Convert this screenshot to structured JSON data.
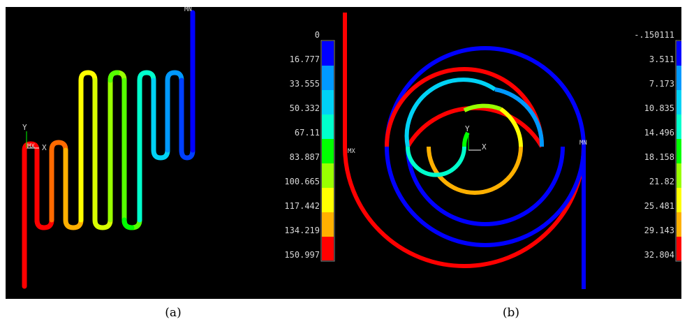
{
  "figure": {
    "caption_a": "(a)",
    "caption_b": "(b)"
  },
  "panel_a": {
    "marker_max": "MX",
    "marker_min": "MN",
    "axis_x": "X",
    "axis_y": "Y",
    "legend": [
      "0",
      "16.777",
      "33.555",
      "50.332",
      "67.11",
      "83.887",
      "100.665",
      "117.442",
      "134.219",
      "150.997"
    ]
  },
  "panel_b": {
    "marker_max": "MX",
    "marker_min": "MN",
    "axis_x": "X",
    "axis_y": "Y",
    "legend": [
      "-.150111",
      "3.511",
      "7.173",
      "10.835",
      "14.496",
      "18.158",
      "21.82",
      "25.481",
      "29.143",
      "32.804"
    ]
  },
  "colors": {
    "band_1": "#0000ff",
    "band_2": "#0099ff",
    "band_3": "#00d2f5",
    "band_4": "#00ffcc",
    "band_5": "#00ff00",
    "band_6": "#99ff00",
    "band_7": "#ffff00",
    "band_8": "#ffb000",
    "band_9": "#ff0000",
    "background": "#000000"
  }
}
